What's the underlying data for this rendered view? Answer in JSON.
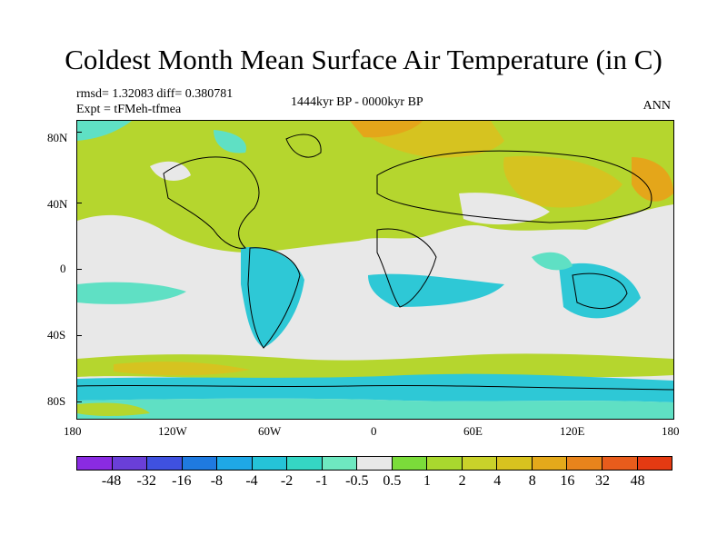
{
  "title": "Coldest Month Mean Surface Air Temperature (in C)",
  "stats": {
    "rmsd_line": "rmsd= 1.32083 diff= 0.380781",
    "expt_line": "Expt = tFMeh-tfmea",
    "period": "1444kyr BP - 0000kyr BP",
    "season": "ANN"
  },
  "axes": {
    "y_labels": [
      "80N",
      "40N",
      "0",
      "40S",
      "80S"
    ],
    "x_labels": [
      "180",
      "120W",
      "60W",
      "0",
      "60E",
      "120E",
      "180"
    ]
  },
  "colorbar": {
    "labels": [
      "-48",
      "-32",
      "-16",
      "-8",
      "-4",
      "-2",
      "-1",
      "-0.5",
      "0.5",
      "1",
      "2",
      "4",
      "8",
      "16",
      "32",
      "48"
    ],
    "colors": [
      "#8a2be2",
      "#6a3fd8",
      "#3f51e0",
      "#1f7ae0",
      "#1fa8e6",
      "#25c3d8",
      "#35d6c4",
      "#6ee8c0",
      "#e8e8e8",
      "#7bdc3a",
      "#a9d82e",
      "#c9d22a",
      "#d8c21f",
      "#e4a91b",
      "#e8841c",
      "#e85c1c",
      "#e43a12"
    ]
  },
  "map_colors": {
    "neutral": "#e8e8e8",
    "cool_light": "#5fe0c4",
    "cool": "#2ec8d6",
    "warm_light": "#b5d62e",
    "warm": "#d6c320",
    "warmer": "#e4a61a"
  }
}
